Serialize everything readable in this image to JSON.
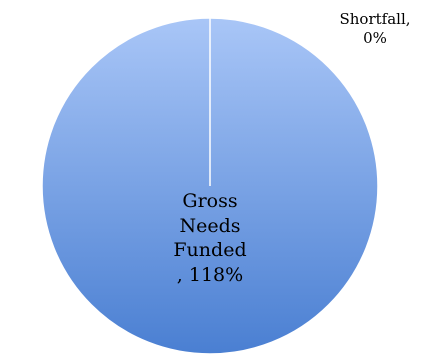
{
  "chart_data": {
    "type": "pie",
    "slices": [
      {
        "label": "Gross Needs Funded",
        "value": 118,
        "display": "Gross\nNeeds\nFunded\n, 118%",
        "color": "#6f9ae0"
      },
      {
        "label": "Shortfall",
        "value": 0,
        "display": "Shortfall,\n0%",
        "color": "#c0504d"
      }
    ],
    "legend": "none",
    "colors": {
      "fill_top": "#a9c6f7",
      "fill_bottom": "#4a7fd2",
      "stroke": "#ffffff"
    }
  }
}
